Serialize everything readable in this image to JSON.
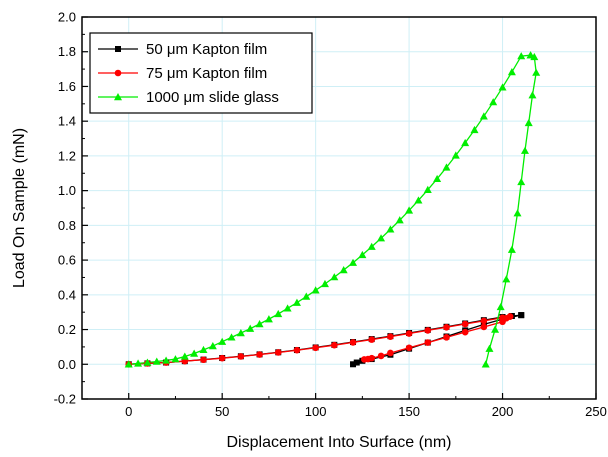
{
  "chart_data": {
    "type": "line",
    "title": "",
    "xlabel": "Displacement Into Surface (nm)",
    "ylabel": "Load On Sample (mN)",
    "xlim": [
      -25,
      250
    ],
    "ylim": [
      -0.2,
      2.0
    ],
    "x_ticks": [
      "0",
      "50",
      "100",
      "150",
      "200",
      "250"
    ],
    "y_ticks": [
      "-0.2",
      "0.0",
      "0.2",
      "0.4",
      "0.6",
      "0.8",
      "1.0",
      "1.2",
      "1.4",
      "1.6",
      "1.8",
      "2.0"
    ],
    "grid": true,
    "legend_position": "top-left",
    "series": [
      {
        "name": "50 μm Kapton film",
        "color": "#000000",
        "marker": "square",
        "loading": {
          "x": [
            0,
            10,
            20,
            30,
            40,
            50,
            60,
            70,
            80,
            90,
            100,
            110,
            120,
            130,
            140,
            150,
            160,
            170,
            180,
            190,
            200,
            205,
            210
          ],
          "y": [
            0.0,
            0.005,
            0.01,
            0.018,
            0.027,
            0.036,
            0.046,
            0.057,
            0.069,
            0.082,
            0.097,
            0.112,
            0.128,
            0.145,
            0.162,
            0.18,
            0.198,
            0.216,
            0.235,
            0.254,
            0.272,
            0.278,
            0.283
          ]
        },
        "unloading": {
          "x": [
            210,
            200,
            190,
            180,
            170,
            160,
            150,
            140,
            130,
            125,
            122,
            120
          ],
          "y": [
            0.283,
            0.26,
            0.23,
            0.195,
            0.16,
            0.125,
            0.09,
            0.055,
            0.03,
            0.02,
            0.01,
            0.0
          ]
        }
      },
      {
        "name": "75 μm Kapton film",
        "color": "#ff0000",
        "marker": "circle",
        "loading": {
          "x": [
            0,
            10,
            20,
            30,
            40,
            50,
            60,
            70,
            80,
            90,
            100,
            110,
            120,
            130,
            140,
            150,
            160,
            170,
            180,
            190,
            200,
            204
          ],
          "y": [
            0.0,
            0.005,
            0.01,
            0.018,
            0.026,
            0.035,
            0.045,
            0.056,
            0.068,
            0.081,
            0.095,
            0.11,
            0.126,
            0.142,
            0.159,
            0.177,
            0.195,
            0.213,
            0.232,
            0.25,
            0.268,
            0.275
          ]
        },
        "unloading": {
          "x": [
            204,
            202,
            200,
            190,
            180,
            170,
            160,
            150,
            140,
            135,
            130,
            128,
            126
          ],
          "y": [
            0.275,
            0.265,
            0.245,
            0.215,
            0.185,
            0.155,
            0.125,
            0.095,
            0.065,
            0.048,
            0.035,
            0.03,
            0.028
          ]
        }
      },
      {
        "name": "1000 μm slide glass",
        "color": "#00ee00",
        "marker": "triangle",
        "loading": {
          "x": [
            0,
            5,
            10,
            15,
            20,
            25,
            30,
            35,
            40,
            45,
            50,
            55,
            60,
            65,
            70,
            75,
            80,
            85,
            90,
            95,
            100,
            105,
            110,
            115,
            120,
            125,
            130,
            135,
            140,
            145,
            150,
            155,
            160,
            165,
            170,
            175,
            180,
            185,
            190,
            195,
            200,
            205,
            210,
            215
          ],
          "y": [
            0.0,
            0.005,
            0.01,
            0.016,
            0.022,
            0.03,
            0.045,
            0.062,
            0.083,
            0.105,
            0.13,
            0.155,
            0.18,
            0.205,
            0.232,
            0.26,
            0.29,
            0.322,
            0.355,
            0.39,
            0.426,
            0.463,
            0.502,
            0.543,
            0.585,
            0.63,
            0.677,
            0.726,
            0.777,
            0.83,
            0.886,
            0.944,
            1.005,
            1.068,
            1.134,
            1.203,
            1.275,
            1.35,
            1.428,
            1.51,
            1.595,
            1.683,
            1.775,
            1.78
          ]
        },
        "unloading": {
          "x": [
            215,
            217,
            218,
            216,
            214,
            212,
            210,
            208,
            205,
            202,
            199,
            196,
            193,
            191
          ],
          "y": [
            1.78,
            1.77,
            1.68,
            1.55,
            1.39,
            1.23,
            1.05,
            0.87,
            0.66,
            0.49,
            0.33,
            0.2,
            0.09,
            0.0
          ]
        }
      }
    ]
  }
}
